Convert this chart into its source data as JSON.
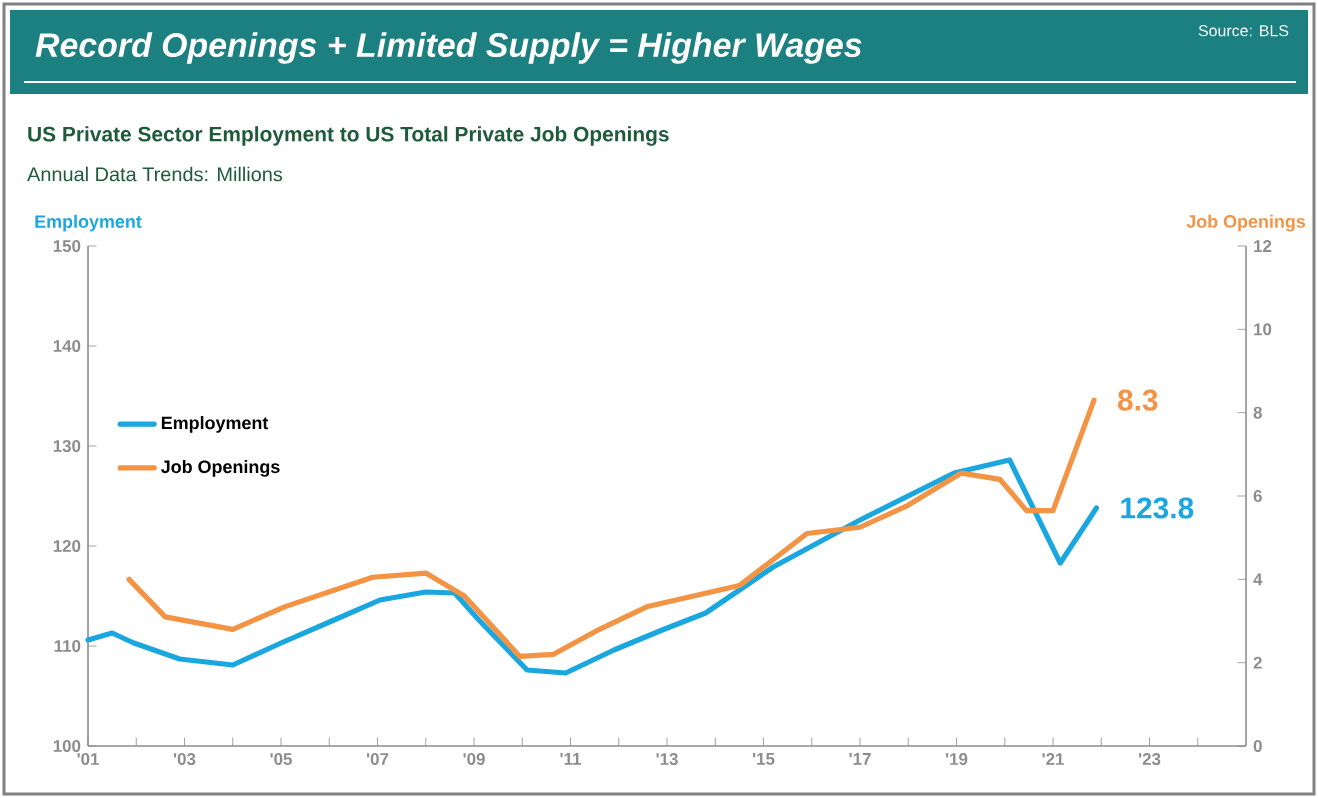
{
  "chart_data": {
    "type": "line",
    "title": "Record Openings + Limited Supply = Higher Wages",
    "subtitle": "US Private Sector Employment to US Total Private Job Openings",
    "annotations": [
      "Source: BLS",
      "Annual Data Trends: Millions"
    ],
    "ylabel": "Employment",
    "y2label": "Job Openings",
    "xlim": [
      2001,
      2025
    ],
    "ylim": [
      100,
      150
    ],
    "y2lim": [
      0,
      12
    ],
    "xticks": [
      {
        "value": 2001,
        "label": "'01"
      },
      {
        "value": 2002,
        "label": null
      },
      {
        "value": 2003,
        "label": "'03"
      },
      {
        "value": 2004,
        "label": null
      },
      {
        "value": 2005,
        "label": "'05"
      },
      {
        "value": 2006,
        "label": null
      },
      {
        "value": 2007,
        "label": "'07"
      },
      {
        "value": 2008,
        "label": null
      },
      {
        "value": 2009,
        "label": "'09"
      },
      {
        "value": 2010,
        "label": null
      },
      {
        "value": 2011,
        "label": "'11"
      },
      {
        "value": 2012,
        "label": null
      },
      {
        "value": 2013,
        "label": "'13"
      },
      {
        "value": 2014,
        "label": null
      },
      {
        "value": 2015,
        "label": "'15"
      },
      {
        "value": 2016,
        "label": null
      },
      {
        "value": 2017,
        "label": "'17"
      },
      {
        "value": 2018,
        "label": null
      },
      {
        "value": 2019,
        "label": "'19"
      },
      {
        "value": 2020,
        "label": null
      },
      {
        "value": 2021,
        "label": "'21"
      },
      {
        "value": 2022,
        "label": null
      },
      {
        "value": 2023,
        "label": "'23"
      },
      {
        "value": 2024,
        "label": null
      }
    ],
    "yticks": [
      100,
      110,
      120,
      130,
      140,
      150
    ],
    "y2ticks": [
      0,
      2,
      4,
      6,
      8,
      10,
      12
    ],
    "legend": "left",
    "grid": false,
    "marker": "none",
    "line_style": "solid",
    "series": [
      {
        "name": "Employment",
        "color": "#1aa7e0",
        "x": [
          2001.0,
          2001.5,
          2001.95,
          2002.9,
          2004.0,
          2005.0,
          2006.1,
          2007.05,
          2008.0,
          2008.6,
          2009.1,
          2010.1,
          2010.9,
          2011.9,
          2012.9,
          2013.8,
          2015.2,
          2017.0,
          2018.95,
          2020.1,
          2021.15,
          2021.9
        ],
        "values": [
          110.6,
          111.3,
          110.3,
          108.7,
          108.1,
          110.3,
          112.6,
          114.6,
          115.4,
          115.3,
          112.6,
          107.6,
          107.3,
          109.6,
          111.6,
          113.3,
          117.9,
          122.6,
          127.3,
          128.6,
          118.3,
          123.8
        ],
        "value_labels": [
          null,
          null,
          null,
          null,
          null,
          null,
          null,
          null,
          null,
          null,
          null,
          null,
          null,
          null,
          null,
          null,
          null,
          null,
          null,
          null,
          null,
          "123.8"
        ]
      },
      {
        "name": "Job Openings",
        "color": "#f39445",
        "axis": "y2",
        "x": [
          2001.85,
          2002.6,
          2004.0,
          2005.1,
          2006.9,
          2008.0,
          2008.8,
          2009.95,
          2010.65,
          2011.6,
          2012.6,
          2014.5,
          2015.9,
          2017.0,
          2017.95,
          2019.1,
          2019.9,
          2020.45,
          2021.0,
          2021.85
        ],
        "values": [
          4.0,
          3.1,
          2.8,
          3.35,
          4.05,
          4.15,
          3.6,
          2.15,
          2.2,
          2.8,
          3.35,
          3.85,
          5.1,
          5.25,
          5.75,
          6.55,
          6.4,
          5.65,
          5.65,
          8.3
        ],
        "value_labels": [
          null,
          null,
          null,
          null,
          null,
          null,
          null,
          null,
          null,
          null,
          null,
          null,
          null,
          null,
          null,
          null,
          null,
          null,
          null,
          "8.3"
        ]
      }
    ]
  }
}
